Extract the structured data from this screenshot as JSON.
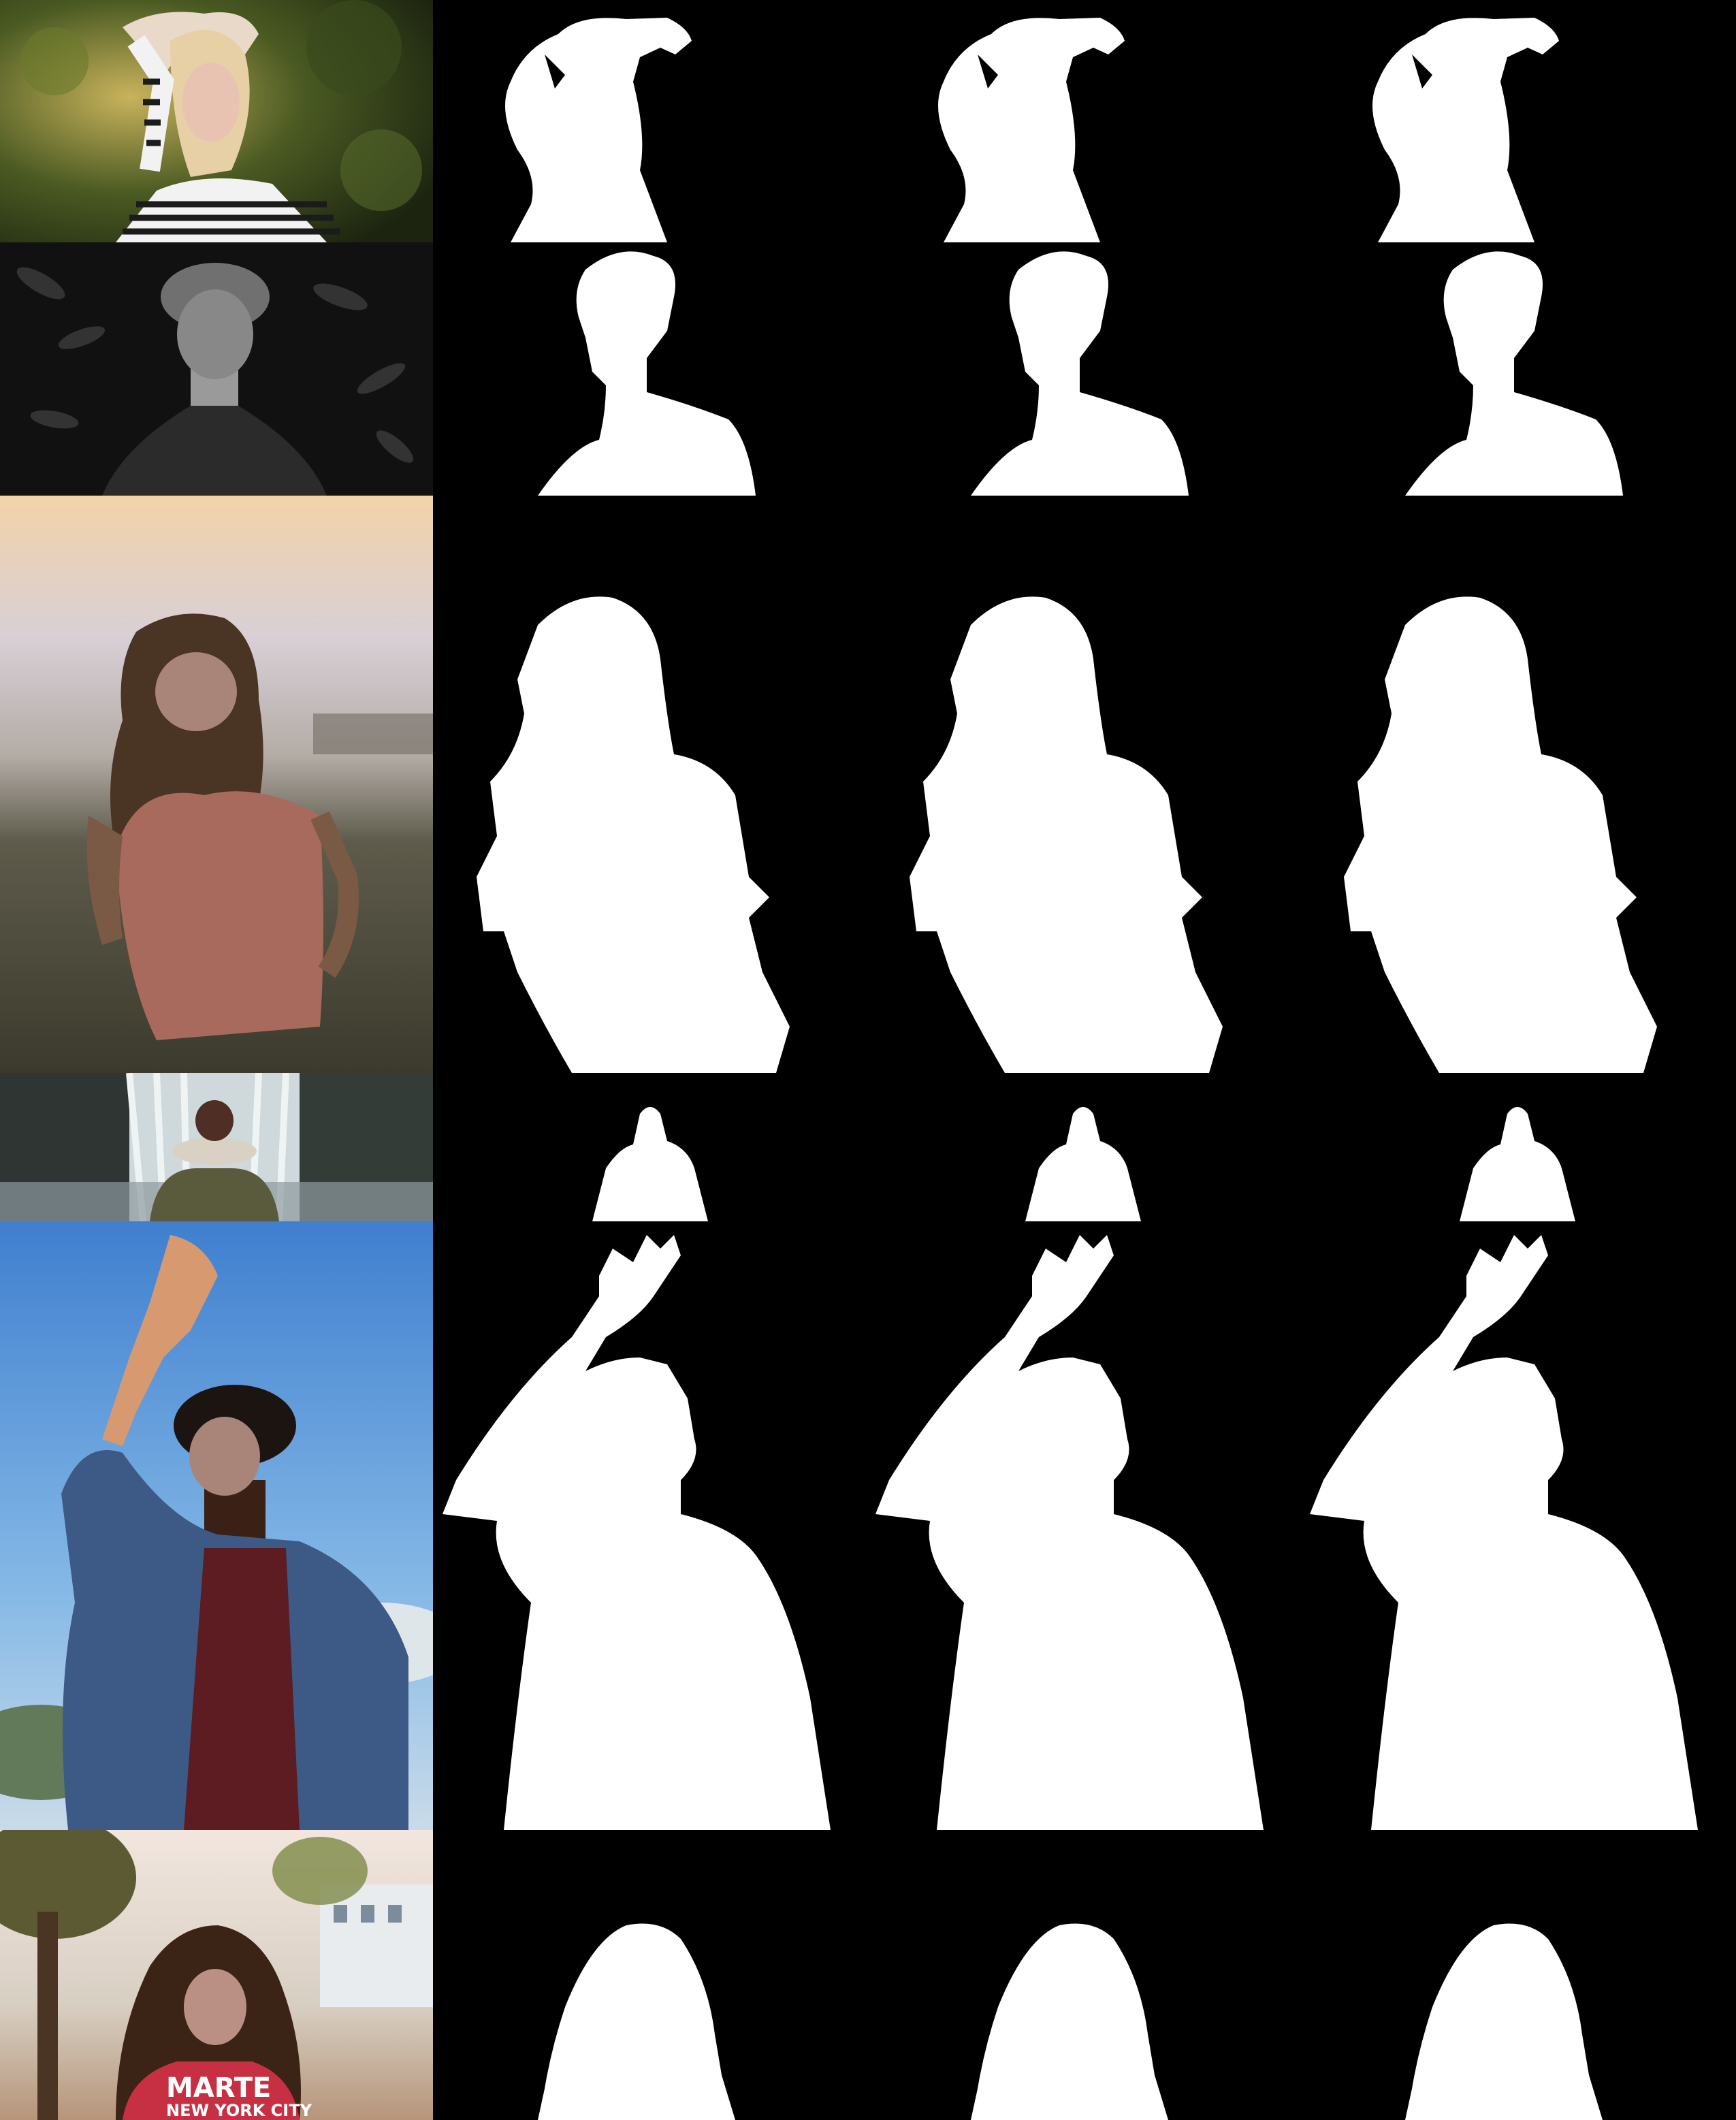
{
  "figure": {
    "layout": "rows of photo + three alpha mattes",
    "rows": [
      {
        "subject": "woman-arm-raised-striped-shirt",
        "photo_tone": "green-bokeh"
      },
      {
        "subject": "man-curly-hair-dark-background",
        "photo_tone": "grayscale"
      },
      {
        "subject": "woman-pink-dress-beach",
        "photo_tone": "warm-haze"
      },
      {
        "subject": "person-back-view-waterfall",
        "photo_tone": "cool-mist"
      },
      {
        "subject": "man-hand-raised-denim-jacket",
        "photo_tone": "blue-sky"
      },
      {
        "subject": "woman-curly-hair-red-shirt",
        "photo_tone": "sunny-park"
      }
    ],
    "shirt_lettering": {
      "line1": "MARTE",
      "line2": "NEW YORK CITY"
    },
    "colors": {
      "background": "#000000",
      "matte": "#ffffff",
      "face_blur": "#a98478"
    }
  }
}
